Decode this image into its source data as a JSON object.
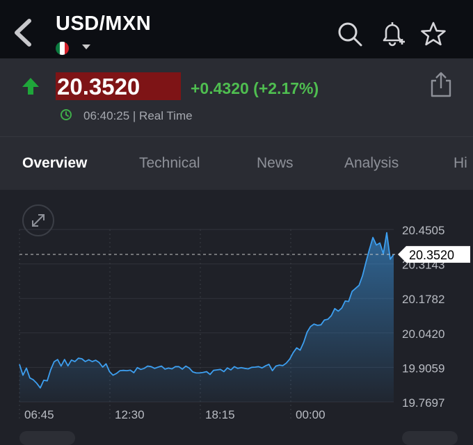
{
  "header": {
    "pair": "USD/MXN",
    "flag_colors": [
      "#0b7a3f",
      "#ffffff",
      "#d2202b"
    ],
    "icons": [
      "back-chevron-icon",
      "search-icon",
      "add-alert-bell-icon",
      "star-icon"
    ]
  },
  "quote": {
    "price": "20.3520",
    "change": "+0.4320 (+2.17%)",
    "time": "06:40:25 | Real Time",
    "colors": {
      "up": "#1fa63a",
      "change": "#4fbe50",
      "price_bg": "#7e1416"
    }
  },
  "tabs": [
    {
      "label": "Overview",
      "active": true
    },
    {
      "label": "Technical",
      "active": false
    },
    {
      "label": "News",
      "active": false
    },
    {
      "label": "Analysis",
      "active": false
    },
    {
      "label": "Hi",
      "active": false
    }
  ],
  "chart_data": {
    "type": "area",
    "y_ticks": [
      "20.4505",
      "20.3143",
      "20.1782",
      "20.0420",
      "19.9059",
      "19.7697"
    ],
    "x_ticks": [
      "06:45",
      "12:30",
      "18:15",
      "00:00"
    ],
    "ylim": [
      19.7697,
      20.4505
    ],
    "last_price_label": "20.3520",
    "last_price": 20.352,
    "line_color": "#3d9ff0",
    "values": [
      19.918,
      19.875,
      19.903,
      19.864,
      19.857,
      19.843,
      19.825,
      19.855,
      19.853,
      19.896,
      19.928,
      19.937,
      19.911,
      19.937,
      19.912,
      19.935,
      19.929,
      19.942,
      19.94,
      19.929,
      19.936,
      19.929,
      19.934,
      19.925,
      19.907,
      19.92,
      19.889,
      19.875,
      19.882,
      19.893,
      19.894,
      19.893,
      19.895,
      19.885,
      19.905,
      19.898,
      19.902,
      19.911,
      19.909,
      19.902,
      19.907,
      19.911,
      19.899,
      19.903,
      19.9,
      19.909,
      19.909,
      19.899,
      19.911,
      19.903,
      19.888,
      19.884,
      19.884,
      19.886,
      19.889,
      19.878,
      19.894,
      19.896,
      19.898,
      19.889,
      19.904,
      19.896,
      19.909,
      19.902,
      19.905,
      19.902,
      19.9,
      19.906,
      19.907,
      19.909,
      19.904,
      19.912,
      19.918,
      19.893,
      19.911,
      19.915,
      19.913,
      19.923,
      19.939,
      19.964,
      19.983,
      19.974,
      20.004,
      20.045,
      20.067,
      20.077,
      20.072,
      20.074,
      20.093,
      20.096,
      20.11,
      20.138,
      20.128,
      20.14,
      20.168,
      20.166,
      20.206,
      20.218,
      20.23,
      20.268,
      20.321,
      20.372,
      20.419,
      20.389,
      20.397,
      20.355,
      20.438,
      20.333,
      20.352
    ]
  }
}
